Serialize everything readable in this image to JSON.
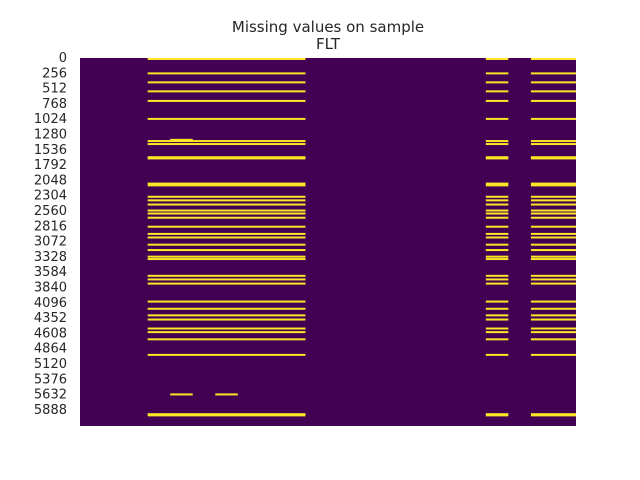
{
  "chart_data": {
    "type": "heatmap",
    "title_lines": [
      "Missing values on sample",
      "FLT"
    ],
    "xlabel": "",
    "ylabel": "",
    "row_count": 6144,
    "column_count": 22,
    "y_tick_labels": [
      "0",
      "256",
      "512",
      "768",
      "1024",
      "1280",
      "1536",
      "1792",
      "2048",
      "2304",
      "2560",
      "2816",
      "3072",
      "3328",
      "3584",
      "3840",
      "4096",
      "4352",
      "4608",
      "4864",
      "5120",
      "5376",
      "5632",
      "5888"
    ],
    "colors": {
      "present": "#440154",
      "missing": "#fde725"
    },
    "value_encoding": {
      "0": "present",
      "1": "missing"
    },
    "full_missing_column_groups": [
      {
        "first_column": 3,
        "last_column": 9
      },
      {
        "first_column": 18,
        "last_column": 18
      },
      {
        "first_column": 20,
        "last_column": 21
      }
    ],
    "full_missing_rows": [
      0,
      240,
      390,
      540,
      700,
      1000,
      1370,
      1420,
      1640,
      1660,
      2080,
      2110,
      2300,
      2360,
      2430,
      2530,
      2580,
      2650,
      2800,
      2920,
      2980,
      3100,
      3190,
      3300,
      3340,
      3620,
      3680,
      3750,
      4050,
      4170,
      4280,
      4350,
      4500,
      4560,
      4680,
      4940,
      5930,
      5950
    ],
    "partial_missing": [
      {
        "row": 1350,
        "first_column": 4,
        "last_column": 4
      },
      {
        "row": 5600,
        "first_column": 4,
        "last_column": 4
      },
      {
        "row": 5600,
        "first_column": 6,
        "last_column": 6
      }
    ]
  }
}
